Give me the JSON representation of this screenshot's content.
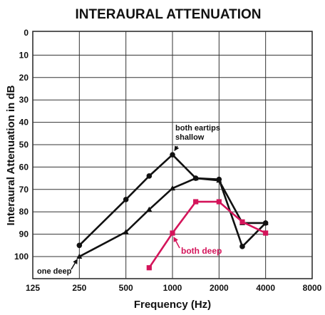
{
  "chart_data": {
    "type": "line",
    "title": "INTERAURAL ATTENUATION",
    "xlabel": "Frequency (Hz)",
    "ylabel": "Interaural Attenuation in dB",
    "x_scale": "log2",
    "x_ticks": [
      125,
      250,
      500,
      1000,
      2000,
      4000,
      8000
    ],
    "y_ticks": [
      0,
      10,
      20,
      30,
      40,
      50,
      60,
      70,
      80,
      90,
      100
    ],
    "ylim": [
      0,
      110
    ],
    "y_inverted": true,
    "grid": true,
    "series": [
      {
        "name": "both eartips shallow",
        "color": "#111111",
        "marker": "circle",
        "x": [
          250,
          500,
          707,
          1000,
          1414,
          2000,
          2828,
          4000
        ],
        "y": [
          95,
          74.5,
          64,
          54.5,
          65,
          65.5,
          95.5,
          85
        ]
      },
      {
        "name": "one deep",
        "color": "#111111",
        "marker": "triangle",
        "x": [
          250,
          500,
          707,
          1000,
          1414,
          2000,
          2828,
          4000
        ],
        "y": [
          100,
          89,
          79,
          69.5,
          65,
          66,
          85,
          85
        ]
      },
      {
        "name": "both deep",
        "color": "#d4145a",
        "marker": "square",
        "x": [
          707,
          1000,
          1414,
          2000,
          2828,
          4000
        ],
        "y": [
          105,
          89.5,
          75.5,
          75.5,
          84.5,
          89.5
        ]
      }
    ],
    "annotations": [
      {
        "lines": [
          "both eartips",
          "shallow"
        ],
        "series": 0,
        "x": 1000,
        "y": 54.5
      },
      {
        "lines": [
          "one deep"
        ],
        "series": 1,
        "x": 250,
        "y": 100
      },
      {
        "lines": [
          "both deep"
        ],
        "series": 2,
        "x": 1000,
        "y": 89.5
      }
    ]
  }
}
